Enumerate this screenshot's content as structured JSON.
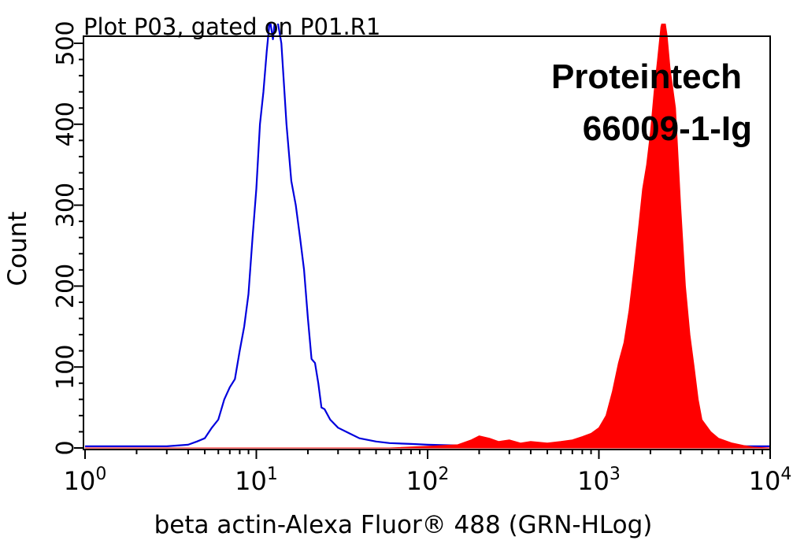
{
  "chart_data": {
    "type": "area",
    "title": "Plot P03, gated on P01.R1",
    "xlabel": "beta actin-Alexa Fluor® 488 (GRN-HLog)",
    "ylabel": "Count",
    "x_scale": "log",
    "xlim": [
      1,
      10000
    ],
    "ylim": [
      0,
      520
    ],
    "x_ticks": [
      {
        "value": 1,
        "base": "10",
        "exp": "0"
      },
      {
        "value": 10,
        "base": "10",
        "exp": "1"
      },
      {
        "value": 100,
        "base": "10",
        "exp": "2"
      },
      {
        "value": 1000,
        "base": "10",
        "exp": "3"
      },
      {
        "value": 10000,
        "base": "10",
        "exp": "4"
      }
    ],
    "y_ticks": [
      {
        "value": 0,
        "label": "0"
      },
      {
        "value": 100,
        "label": "100"
      },
      {
        "value": 200,
        "label": "200"
      },
      {
        "value": 300,
        "label": "300"
      },
      {
        "value": 400,
        "label": "400"
      },
      {
        "value": 500,
        "label": "500"
      }
    ],
    "annotation": {
      "line1": "Proteintech",
      "line2": "66009-1-Ig"
    },
    "series": [
      {
        "color": "#0000dd",
        "style": "outline",
        "points": [
          [
            1.0,
            2
          ],
          [
            3.0,
            2
          ],
          [
            4.0,
            4
          ],
          [
            4.5,
            8
          ],
          [
            5.0,
            12
          ],
          [
            5.5,
            25
          ],
          [
            6.0,
            35
          ],
          [
            6.5,
            60
          ],
          [
            7.0,
            75
          ],
          [
            7.5,
            85
          ],
          [
            8.0,
            120
          ],
          [
            8.5,
            150
          ],
          [
            9.0,
            190
          ],
          [
            9.5,
            260
          ],
          [
            10.0,
            320
          ],
          [
            10.5,
            400
          ],
          [
            11.0,
            440
          ],
          [
            11.5,
            490
          ],
          [
            12.0,
            530
          ],
          [
            12.5,
            505
          ],
          [
            13.0,
            540
          ],
          [
            13.5,
            520
          ],
          [
            14.0,
            500
          ],
          [
            15.0,
            400
          ],
          [
            16.0,
            330
          ],
          [
            17.0,
            300
          ],
          [
            18.0,
            260
          ],
          [
            19.0,
            220
          ],
          [
            20.0,
            160
          ],
          [
            21.0,
            110
          ],
          [
            22.0,
            105
          ],
          [
            23.0,
            80
          ],
          [
            24.0,
            50
          ],
          [
            25.0,
            48
          ],
          [
            27.0,
            35
          ],
          [
            30.0,
            25
          ],
          [
            35.0,
            18
          ],
          [
            40.0,
            12
          ],
          [
            50.0,
            8
          ],
          [
            60.0,
            6
          ],
          [
            80.0,
            5
          ],
          [
            100.0,
            4
          ],
          [
            150.0,
            3
          ],
          [
            300.0,
            2
          ],
          [
            1000.0,
            2
          ],
          [
            10000.0,
            2
          ]
        ]
      },
      {
        "color": "#ff0000",
        "style": "filled",
        "points": [
          [
            1.0,
            0
          ],
          [
            60.0,
            0
          ],
          [
            100.0,
            2
          ],
          [
            150.0,
            4
          ],
          [
            180.0,
            10
          ],
          [
            200.0,
            15
          ],
          [
            230.0,
            12
          ],
          [
            260.0,
            8
          ],
          [
            300.0,
            10
          ],
          [
            350.0,
            6
          ],
          [
            400.0,
            8
          ],
          [
            500.0,
            6
          ],
          [
            600.0,
            8
          ],
          [
            700.0,
            10
          ],
          [
            800.0,
            14
          ],
          [
            900.0,
            18
          ],
          [
            1000.0,
            25
          ],
          [
            1100.0,
            40
          ],
          [
            1200.0,
            70
          ],
          [
            1300.0,
            105
          ],
          [
            1400.0,
            130
          ],
          [
            1500.0,
            170
          ],
          [
            1600.0,
            220
          ],
          [
            1700.0,
            270
          ],
          [
            1800.0,
            320
          ],
          [
            1900.0,
            350
          ],
          [
            2000.0,
            390
          ],
          [
            2100.0,
            440
          ],
          [
            2200.0,
            480
          ],
          [
            2300.0,
            520
          ],
          [
            2400.0,
            535
          ],
          [
            2500.0,
            510
          ],
          [
            2600.0,
            470
          ],
          [
            2800.0,
            420
          ],
          [
            3000.0,
            300
          ],
          [
            3200.0,
            200
          ],
          [
            3400.0,
            140
          ],
          [
            3600.0,
            100
          ],
          [
            3800.0,
            60
          ],
          [
            4000.0,
            35
          ],
          [
            4500.0,
            20
          ],
          [
            5000.0,
            12
          ],
          [
            6000.0,
            6
          ],
          [
            7000.0,
            3
          ],
          [
            8000.0,
            1
          ],
          [
            10000.0,
            0
          ]
        ]
      }
    ]
  }
}
